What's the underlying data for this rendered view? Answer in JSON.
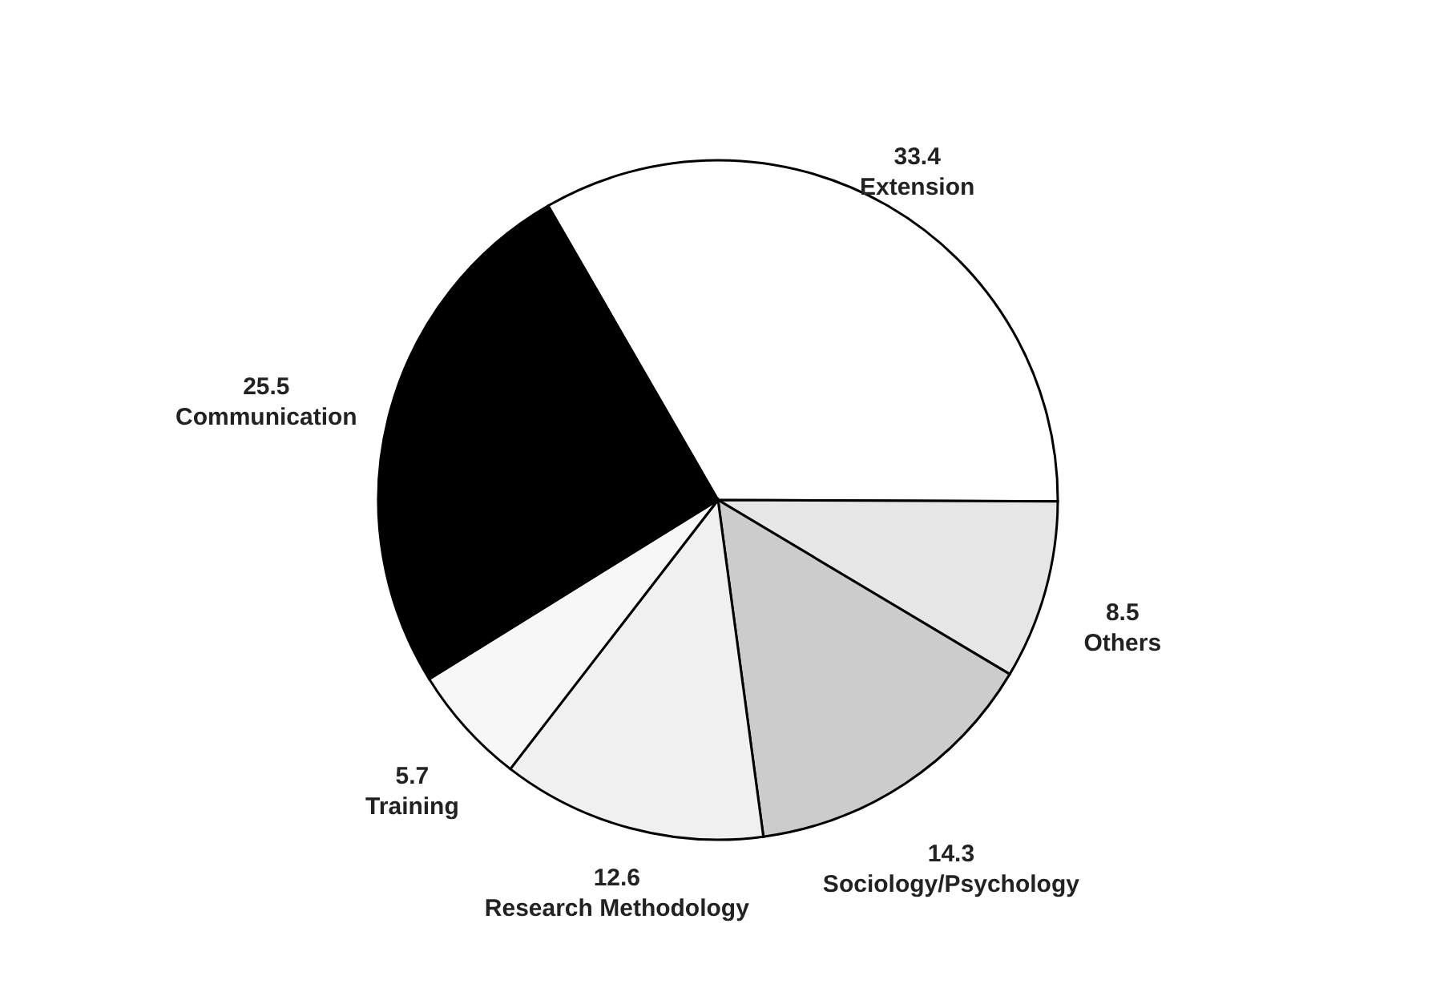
{
  "chart_data": {
    "type": "pie",
    "categories": [
      "Extension",
      "Others",
      "Sociology/Psychology",
      "Research Methodology",
      "Training",
      "Communication"
    ],
    "values": [
      33.4,
      8.5,
      14.3,
      12.6,
      5.7,
      25.5
    ],
    "colors": [
      "#ffffff",
      "#e6e6e6",
      "#cccccc",
      "#f0f0f0",
      "#f7f7f7",
      "#000000"
    ],
    "data_labels": true
  }
}
